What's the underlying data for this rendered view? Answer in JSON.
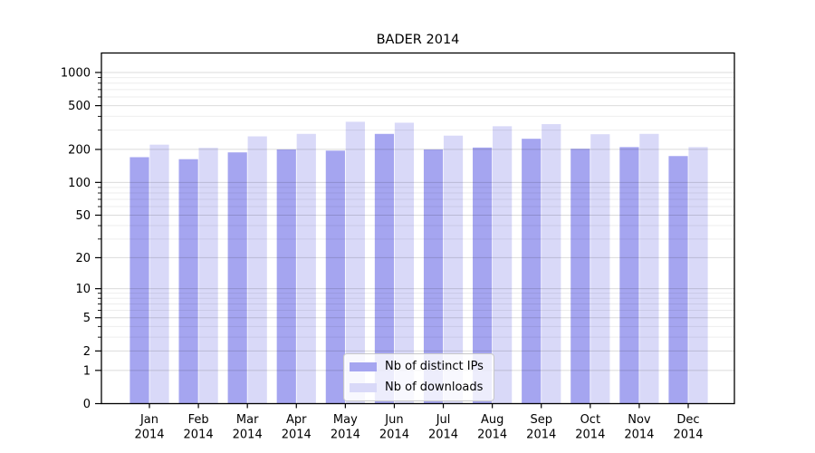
{
  "chart_data": {
    "type": "bar",
    "title": "BADER 2014",
    "categories": [
      "Jan 2014",
      "Feb 2014",
      "Mar 2014",
      "Apr 2014",
      "May 2014",
      "Jun 2014",
      "Jul 2014",
      "Aug 2014",
      "Sep 2014",
      "Oct 2014",
      "Nov 2014",
      "Dec 2014"
    ],
    "series": [
      {
        "name": "Nb of distinct IPs",
        "color": "#a5a5f0",
        "values": [
          170,
          163,
          188,
          200,
          195,
          277,
          200,
          208,
          250,
          203,
          210,
          174
        ]
      },
      {
        "name": "Nb of downloads",
        "color": "#d9d9f8",
        "values": [
          221,
          207,
          263,
          277,
          357,
          350,
          267,
          325,
          340,
          275,
          277,
          210
        ]
      }
    ],
    "xlabel": "",
    "ylabel": "",
    "y_axis": {
      "scale": "log1p",
      "ticks": [
        1000,
        500,
        200,
        100,
        50,
        20,
        10,
        5,
        2,
        1,
        0
      ],
      "minor_ticks": [
        900,
        800,
        700,
        600,
        400,
        300,
        90,
        80,
        70,
        60,
        40,
        30,
        9,
        8,
        7,
        6,
        4,
        3
      ],
      "ylim": [
        0,
        1000
      ],
      "grid": "on"
    },
    "legend": {
      "position": "inside-bottom-center"
    }
  }
}
